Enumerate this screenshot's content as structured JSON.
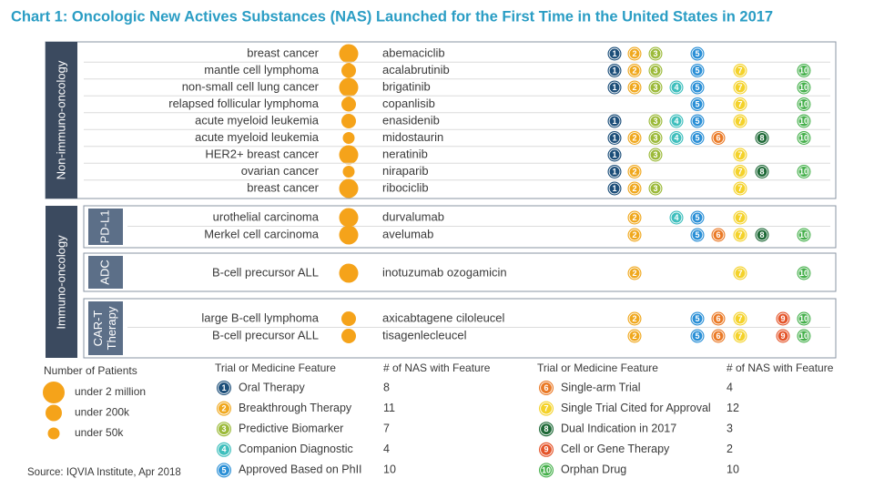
{
  "title": "Chart 1: Oncologic New Actives Substances (NAS) Launched for the First Time in the United States in 2017",
  "sections": [
    {
      "label": "Non-immuno-oncology",
      "rows": [
        {
          "indication": "breast cancer",
          "drug": "abemaciclib",
          "patients": 0,
          "features": [
            1,
            2,
            3,
            5
          ]
        },
        {
          "indication": "mantle cell lymphoma",
          "drug": "acalabrutinib",
          "patients": 1,
          "features": [
            1,
            2,
            3,
            5,
            7,
            10
          ]
        },
        {
          "indication": "non-small cell lung cancer",
          "drug": "brigatinib",
          "patients": 0,
          "features": [
            1,
            2,
            3,
            4,
            5,
            7,
            10
          ]
        },
        {
          "indication": "relapsed follicular lymphoma",
          "drug": "copanlisib",
          "patients": 1,
          "features": [
            5,
            7,
            10
          ]
        },
        {
          "indication": "acute myeloid leukemia",
          "drug": "enasidenib",
          "patients": 1,
          "features": [
            1,
            3,
            4,
            5,
            7,
            10
          ]
        },
        {
          "indication": "acute myeloid leukemia",
          "drug": "midostaurin",
          "patients": 2,
          "features": [
            1,
            2,
            3,
            4,
            5,
            6,
            8,
            10
          ]
        },
        {
          "indication": "HER2+ breast cancer",
          "drug": "neratinib",
          "patients": 0,
          "features": [
            1,
            3,
            7
          ]
        },
        {
          "indication": "ovarian cancer",
          "drug": "niraparib",
          "patients": 2,
          "features": [
            1,
            2,
            7,
            8,
            10
          ]
        },
        {
          "indication": "breast cancer",
          "drug": "ribociclib",
          "patients": 0,
          "features": [
            1,
            2,
            3,
            7
          ]
        }
      ]
    },
    {
      "label": "Immuno-oncology",
      "groups": [
        {
          "label_lines": [
            "PD-L1"
          ],
          "rows": [
            {
              "indication": "urothelial carcinoma",
              "drug": "durvalumab",
              "patients": 0,
              "features": [
                2,
                4,
                5,
                7
              ]
            },
            {
              "indication": "Merkel cell carcinoma",
              "drug": "avelumab",
              "patients": 0,
              "features": [
                2,
                5,
                6,
                7,
                8,
                10
              ]
            }
          ]
        },
        {
          "label_lines": [
            "ADC"
          ],
          "rows": [
            {
              "indication": "B-cell precursor ALL",
              "drug": "inotuzumab ozogamicin",
              "patients": 0,
              "features": [
                2,
                7,
                10
              ]
            }
          ]
        },
        {
          "label_lines": [
            "CAR-T",
            "Therapy"
          ],
          "rows": [
            {
              "indication": "large B-cell lymphoma",
              "drug": "axicabtagene ciloleucel",
              "patients": 1,
              "features": [
                2,
                5,
                6,
                7,
                9,
                10
              ]
            },
            {
              "indication": "B-cell precursor ALL",
              "drug": "tisagenlecleucel",
              "patients": 1,
              "features": [
                2,
                5,
                6,
                7,
                9,
                10
              ]
            }
          ]
        }
      ]
    }
  ],
  "patients_legend": {
    "title": "Number of Patients",
    "items": [
      "under 2 million",
      "under 200k",
      "under 50k"
    ],
    "color": "#f5a31a"
  },
  "features_legend": {
    "header_feature": "Trial or Medicine Feature",
    "header_count": "# of NAS with Feature",
    "items": [
      {
        "number": 1,
        "label": "Oral Therapy",
        "count": 8,
        "color": "#1d4f7a"
      },
      {
        "number": 2,
        "label": "Breakthrough Therapy",
        "count": 11,
        "color": "#f0a81e"
      },
      {
        "number": 3,
        "label": "Predictive Biomarker",
        "count": 7,
        "color": "#9cba3a"
      },
      {
        "number": 4,
        "label": "Companion Diagnostic",
        "count": 4,
        "color": "#3fbfbd"
      },
      {
        "number": 5,
        "label": "Approved Based on PhII",
        "count": 10,
        "color": "#2a8fd6"
      },
      {
        "number": 6,
        "label": "Single-arm Trial",
        "count": 4,
        "color": "#ea7a27"
      },
      {
        "number": 7,
        "label": "Single Trial Cited for Approval",
        "count": 12,
        "color": "#f4d22a"
      },
      {
        "number": 8,
        "label": "Dual Indication in 2017",
        "count": 3,
        "color": "#1f6a38"
      },
      {
        "number": 9,
        "label": "Cell or Gene Therapy",
        "count": 2,
        "color": "#e4552a"
      },
      {
        "number": 10,
        "label": "Orphan Drug",
        "count": 10,
        "color": "#45b04b"
      }
    ]
  },
  "source": "Source: IQVIA Institute, Apr 2018"
}
